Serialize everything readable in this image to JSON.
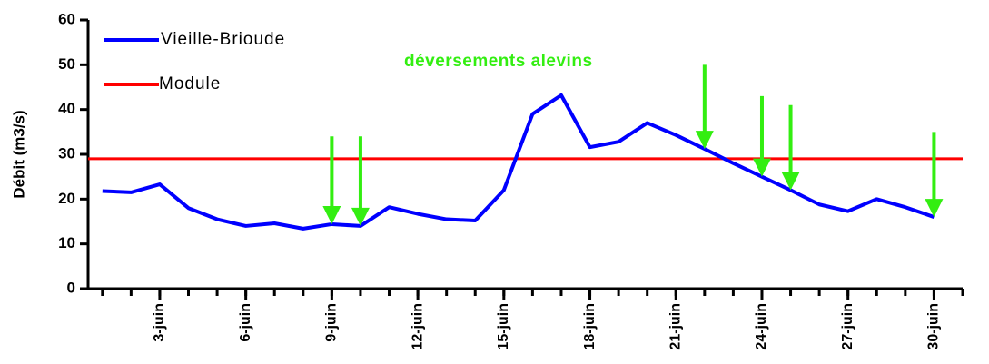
{
  "chart_data": {
    "type": "line",
    "ylabel": "Débit (m3/s)",
    "x": [
      1,
      2,
      3,
      4,
      5,
      6,
      7,
      8,
      9,
      10,
      11,
      12,
      13,
      14,
      15,
      16,
      17,
      18,
      19,
      20,
      21,
      22,
      23,
      24,
      25,
      26,
      27,
      28,
      29,
      30
    ],
    "series": [
      {
        "name": "Vieille-Brioude",
        "color": "#0000ff",
        "values": [
          21.8,
          21.5,
          23.3,
          18,
          15.5,
          14,
          14.6,
          13.4,
          14.4,
          14,
          18.2,
          16.7,
          15.5,
          15.2,
          22,
          39,
          43.2,
          31.6,
          32.8,
          37,
          34.3,
          31.2,
          28,
          25,
          22,
          18.8,
          17.3,
          20,
          18.2,
          16
        ]
      }
    ],
    "reference_line": {
      "name": "Module",
      "color": "#ff0000",
      "value": 29
    },
    "annotation": {
      "text": "déversements alevins",
      "color": "#33ee11",
      "arrows_x": [
        9,
        10,
        22,
        24,
        25,
        30
      ],
      "arrows_top": [
        34,
        34,
        50,
        43,
        41,
        35
      ]
    },
    "xlim": [
      0.5,
      31
    ],
    "xminorticks": [
      1,
      2,
      3,
      4,
      5,
      6,
      7,
      8,
      9,
      10,
      11,
      12,
      13,
      14,
      15,
      16,
      17,
      18,
      19,
      20,
      21,
      22,
      23,
      24,
      25,
      26,
      27,
      28,
      29,
      30,
      31
    ],
    "xticks": [
      {
        "value": 3,
        "label": "3-juin"
      },
      {
        "value": 6,
        "label": "6-juin"
      },
      {
        "value": 9,
        "label": "9-juin"
      },
      {
        "value": 12,
        "label": "12-juin"
      },
      {
        "value": 15,
        "label": "15-juin"
      },
      {
        "value": 18,
        "label": "18-juin"
      },
      {
        "value": 21,
        "label": "21-juin"
      },
      {
        "value": 24,
        "label": "24-juin"
      },
      {
        "value": 27,
        "label": "27-juin"
      },
      {
        "value": 30,
        "label": "30-juin"
      }
    ],
    "ylim": [
      0,
      60
    ],
    "yticks": [
      0,
      10,
      20,
      30,
      40,
      50,
      60
    ]
  }
}
